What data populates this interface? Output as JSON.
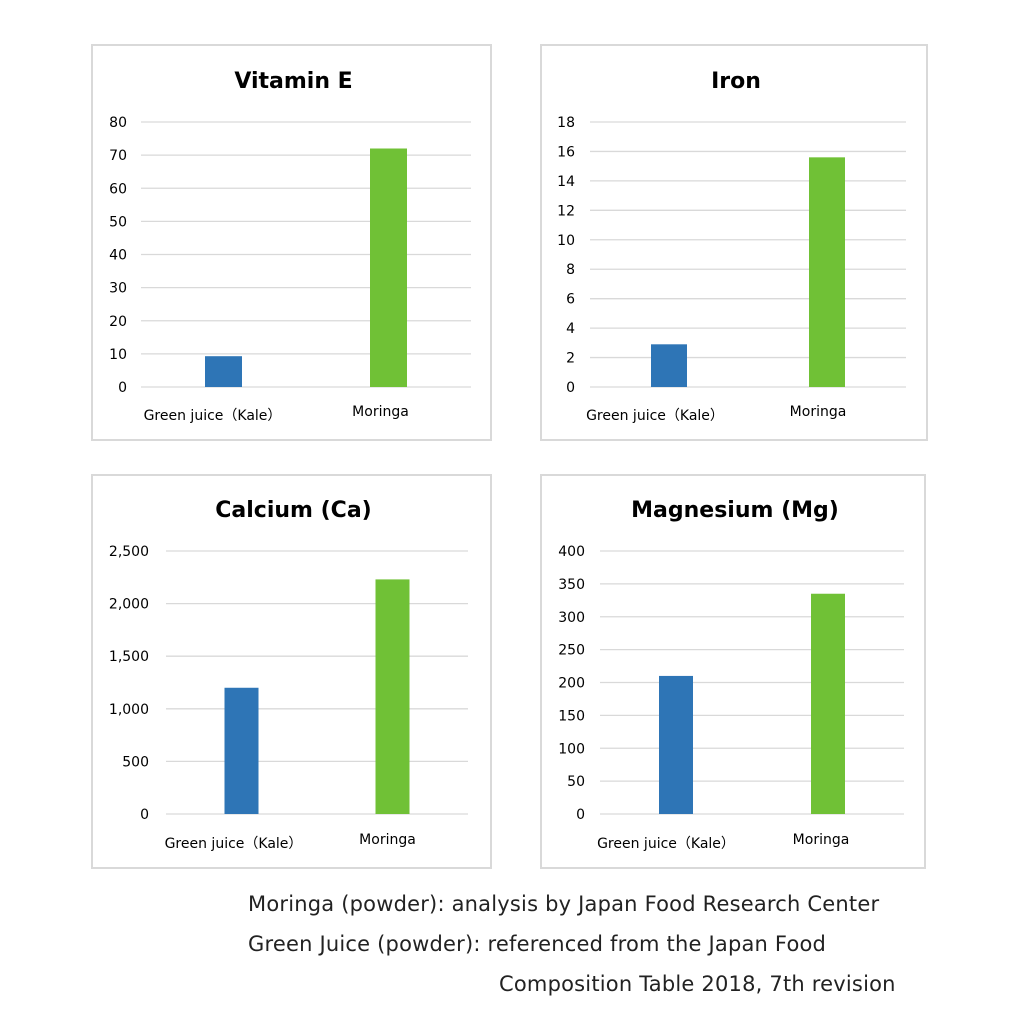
{
  "chart_data": [
    {
      "type": "bar",
      "title": "Vitamin E",
      "categories": [
        "Green juice（Kale）",
        "Moringa"
      ],
      "values": [
        9.3,
        72
      ],
      "bar_colors": [
        "#2e75b6",
        "#70c136"
      ],
      "ylim": [
        0,
        80
      ],
      "yticks": [
        "0",
        "10",
        "20",
        "30",
        "40",
        "50",
        "60",
        "70",
        "80"
      ],
      "grid": true,
      "legend": "none"
    },
    {
      "type": "bar",
      "title": "Iron",
      "categories": [
        "Green juice（Kale）",
        "Moringa"
      ],
      "values": [
        2.9,
        15.6
      ],
      "bar_colors": [
        "#2e75b6",
        "#70c136"
      ],
      "ylim": [
        0,
        18
      ],
      "yticks": [
        "0",
        "2",
        "4",
        "6",
        "8",
        "10",
        "12",
        "14",
        "16",
        "18"
      ],
      "grid": true,
      "legend": "none"
    },
    {
      "type": "bar",
      "title": "Calcium (Ca)",
      "categories": [
        "Green juice（Kale）",
        "Moringa"
      ],
      "values": [
        1200,
        2230
      ],
      "bar_colors": [
        "#2e75b6",
        "#70c136"
      ],
      "ylim": [
        0,
        2500
      ],
      "yticks": [
        "0",
        "500",
        "1,000",
        "1,500",
        "2,000",
        "2,500"
      ],
      "grid": true,
      "legend": "none"
    },
    {
      "type": "bar",
      "title": "Magnesium (Mg)",
      "categories": [
        "Green juice（Kale）",
        "Moringa"
      ],
      "values": [
        210,
        335
      ],
      "bar_colors": [
        "#2e75b6",
        "#70c136"
      ],
      "ylim": [
        0,
        400
      ],
      "yticks": [
        "0",
        "50",
        "100",
        "150",
        "200",
        "250",
        "300",
        "350",
        "400"
      ],
      "grid": true,
      "legend": "none"
    }
  ],
  "source_notes": {
    "line1": "Moringa (powder): analysis by Japan Food Research Center",
    "line2": "Green Juice (powder): referenced from the Japan Food",
    "line3": "Composition Table 2018, 7th revision"
  }
}
